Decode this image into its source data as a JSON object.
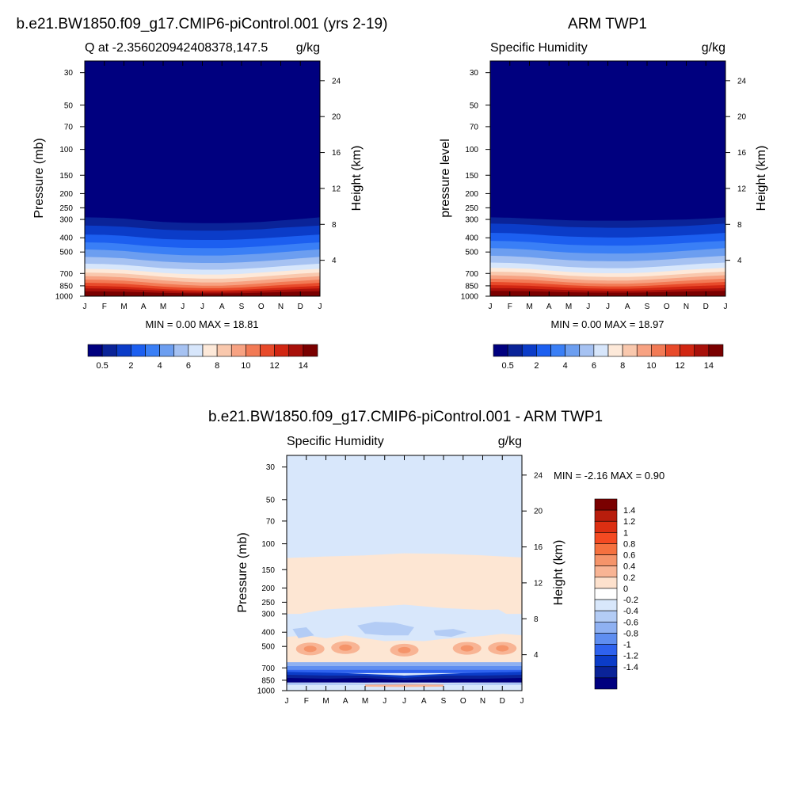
{
  "panels": [
    {
      "main_title": "b.e21.BW1850.f09_g17.CMIP6-piControl.001 (yrs 2-19)",
      "left_label": "Q at -2.356020942408378,147.5",
      "right_label": "g/kg",
      "ylabel": "Pressure (mb)",
      "ylabel_right": "Height (km)",
      "stats": "MIN =   0.00 MAX =  18.81"
    },
    {
      "main_title": "ARM TWP1",
      "left_label": "Specific Humidity",
      "right_label": "g/kg",
      "ylabel": "pressure level",
      "ylabel_right": "Height (km)",
      "stats": "MIN =   0.00 MAX =  18.97"
    },
    {
      "main_title": "b.e21.BW1850.f09_g17.CMIP6-piControl.001 - ARM TWP1",
      "left_label": "Specific Humidity",
      "right_label": "g/kg",
      "ylabel": "Pressure (mb)",
      "ylabel_right": "Height (km)",
      "stats": "MIN =  -2.16 MAX =   0.90"
    }
  ],
  "chart_data": [
    {
      "type": "heatmap",
      "title": "b.e21.BW1850.f09_g17.CMIP6-piControl.001 (yrs 2-19)",
      "xlabel": "",
      "ylabel": "Pressure (mb)",
      "ylabel_right": "Height (km)",
      "x_ticks": [
        "J",
        "F",
        "M",
        "A",
        "M",
        "J",
        "J",
        "A",
        "S",
        "O",
        "N",
        "D",
        "J"
      ],
      "y_ticks": [
        30,
        50,
        70,
        100,
        150,
        200,
        250,
        300,
        400,
        500,
        700,
        850,
        1000
      ],
      "y_right_ticks": [
        4,
        8,
        12,
        16,
        20,
        24
      ],
      "ylim": [
        1000,
        25
      ],
      "y_scale": "log",
      "min": 0.0,
      "max": 18.81,
      "colorbar_levels": [
        0.5,
        1,
        2,
        3,
        4,
        5,
        6,
        7,
        8,
        9,
        10,
        11,
        12,
        13,
        14
      ],
      "colorbar_labels": [
        "0.5",
        "2",
        "4",
        "6",
        "8",
        "10",
        "12",
        "14"
      ],
      "colorbar_orientation": "horizontal",
      "colors": [
        "#00007f",
        "#0a2398",
        "#0b3cc8",
        "#1c5ff0",
        "#3a7ff6",
        "#6c9ef0",
        "#a6c2f2",
        "#d7e6fb",
        "#fde9d9",
        "#f9c8ad",
        "#f7a282",
        "#f27a55",
        "#e84a2a",
        "#d12612",
        "#a8100a",
        "#7a0000"
      ]
    },
    {
      "type": "heatmap",
      "title": "ARM TWP1",
      "xlabel": "",
      "ylabel": "pressure level",
      "ylabel_right": "Height (km)",
      "x_ticks": [
        "J",
        "F",
        "M",
        "A",
        "M",
        "J",
        "J",
        "A",
        "S",
        "O",
        "N",
        "D",
        "J"
      ],
      "y_ticks": [
        30,
        50,
        70,
        100,
        150,
        200,
        250,
        300,
        400,
        500,
        700,
        850,
        1000
      ],
      "y_right_ticks": [
        4,
        8,
        12,
        16,
        20,
        24
      ],
      "ylim": [
        1000,
        25
      ],
      "y_scale": "log",
      "min": 0.0,
      "max": 18.97,
      "colorbar_levels": [
        0.5,
        1,
        2,
        3,
        4,
        5,
        6,
        7,
        8,
        9,
        10,
        11,
        12,
        13,
        14
      ],
      "colorbar_labels": [
        "0.5",
        "2",
        "4",
        "6",
        "8",
        "10",
        "12",
        "14"
      ],
      "colorbar_orientation": "horizontal",
      "colors": [
        "#00007f",
        "#0a2398",
        "#0b3cc8",
        "#1c5ff0",
        "#3a7ff6",
        "#6c9ef0",
        "#a6c2f2",
        "#d7e6fb",
        "#fde9d9",
        "#f9c8ad",
        "#f7a282",
        "#f27a55",
        "#e84a2a",
        "#d12612",
        "#a8100a",
        "#7a0000"
      ]
    },
    {
      "type": "heatmap",
      "title": "b.e21.BW1850.f09_g17.CMIP6-piControl.001 - ARM TWP1",
      "xlabel": "",
      "ylabel": "Pressure (mb)",
      "ylabel_right": "Height (km)",
      "x_ticks": [
        "J",
        "F",
        "M",
        "A",
        "M",
        "J",
        "J",
        "A",
        "S",
        "O",
        "N",
        "D",
        "J"
      ],
      "y_ticks": [
        30,
        50,
        70,
        100,
        150,
        200,
        250,
        300,
        400,
        500,
        700,
        850,
        1000
      ],
      "y_right_ticks": [
        4,
        8,
        12,
        16,
        20,
        24
      ],
      "ylim": [
        1000,
        25
      ],
      "y_scale": "log",
      "min": -2.16,
      "max": 0.9,
      "colorbar_levels": [
        1.4,
        1.2,
        1,
        0.8,
        0.6,
        0.4,
        0.2,
        0,
        -0.2,
        -0.4,
        -0.6,
        -0.8,
        -1,
        -1.2,
        -1.4
      ],
      "colorbar_labels": [
        "1.4",
        "1.2",
        "1",
        "0.8",
        "0.6",
        "0.4",
        "0.2",
        "0",
        "-0.2",
        "-0.4",
        "-0.6",
        "-0.8",
        "-1",
        "-1.2",
        "-1.4"
      ],
      "colorbar_orientation": "vertical",
      "colors": [
        "#7a0000",
        "#b81d0c",
        "#dc2f12",
        "#f44a22",
        "#f5713f",
        "#f5946a",
        "#f8b494",
        "#fde1cd",
        "#ffffff",
        "#d8e7fb",
        "#b3ccf5",
        "#8fb1f2",
        "#5f8ef0",
        "#2e62ee",
        "#0b3cc8",
        "#0a2398",
        "#00007f"
      ]
    }
  ]
}
